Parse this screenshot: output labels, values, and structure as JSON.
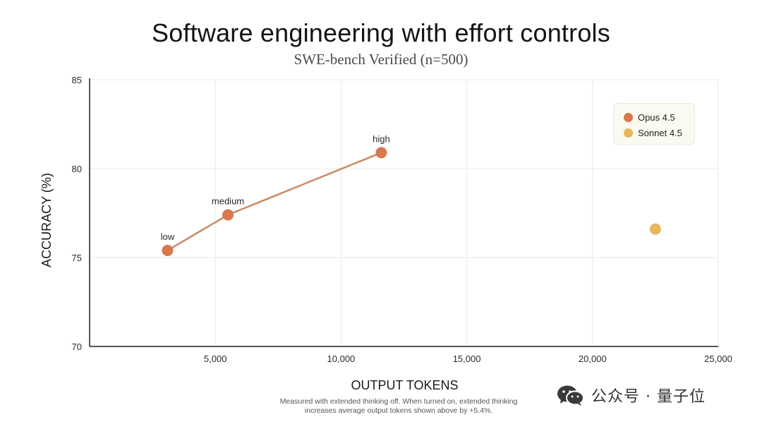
{
  "chart_data": {
    "type": "scatter",
    "title": "Software engineering with effort controls",
    "subtitle": "SWE-bench Verified (n=500)",
    "xlabel": "OUTPUT TOKENS",
    "ylabel": "ACCURACY (%)",
    "xlim": [
      0,
      25000
    ],
    "ylim": [
      70,
      85
    ],
    "xticks": [
      5000,
      10000,
      15000,
      20000,
      25000
    ],
    "xtick_labels": [
      "5,000",
      "10,000",
      "15,000",
      "20,000",
      "25,000"
    ],
    "yticks": [
      70,
      75,
      80,
      85
    ],
    "ytick_labels": [
      "70",
      "75",
      "80",
      "85"
    ],
    "grid": true,
    "legend_position": "top-right",
    "series": [
      {
        "name": "Opus 4.5",
        "color": "#d9774f",
        "connected": true,
        "points": [
          {
            "x": 3100,
            "y": 75.4,
            "label": "low"
          },
          {
            "x": 5500,
            "y": 77.4,
            "label": "medium"
          },
          {
            "x": 11600,
            "y": 80.9,
            "label": "high"
          }
        ]
      },
      {
        "name": "Sonnet 4.5",
        "color": "#e6b85a",
        "connected": false,
        "points": [
          {
            "x": 22500,
            "y": 76.6,
            "label": ""
          }
        ]
      }
    ]
  },
  "footnote": {
    "line1": "Measured with extended thinking off. When turned on, extended thinking",
    "line2": "increases average output tokens shown above by +5.4%."
  },
  "watermark": {
    "text": "公众号 · 量子位",
    "icon": "wechat-icon"
  }
}
